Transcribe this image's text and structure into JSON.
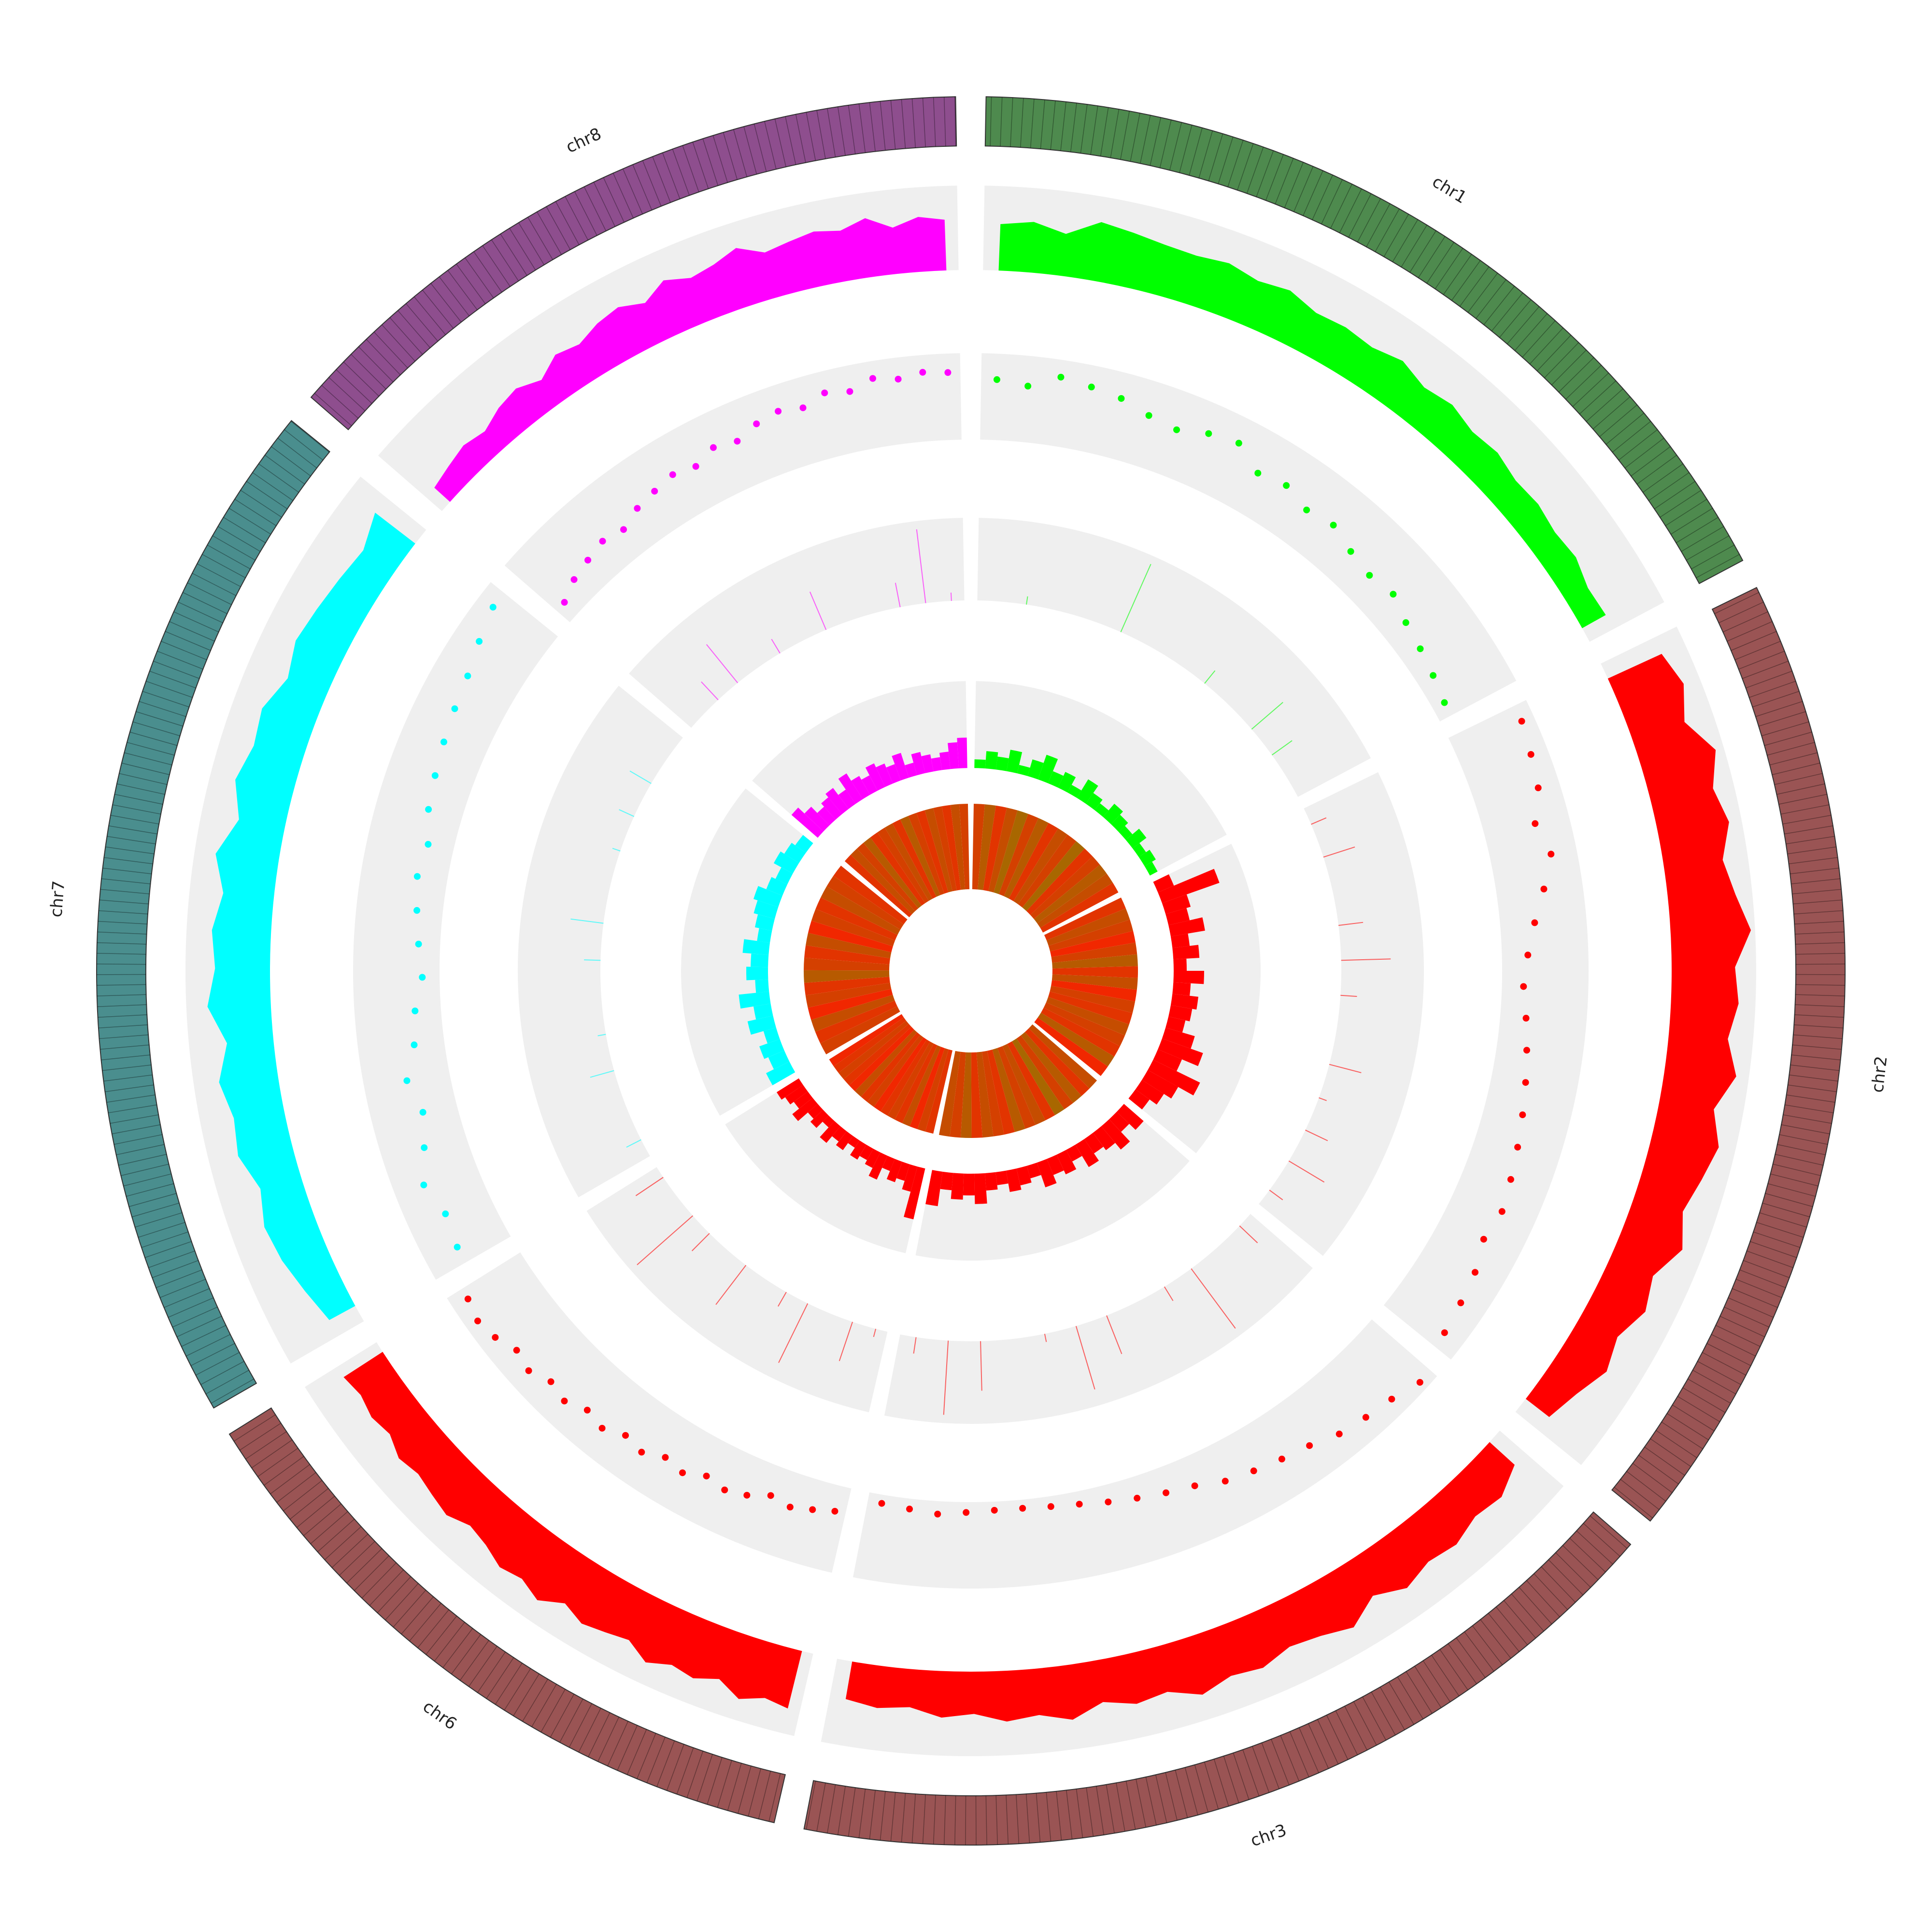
{
  "chart_data": {
    "type": "circos",
    "chromosomes": [
      {
        "name": "chr1",
        "length": 61,
        "color": "#4e8a4e",
        "track_color": "#00ff00"
      },
      {
        "name": "chr2",
        "length": 65,
        "color": "#9a5454",
        "track_color": "#ff0000"
      },
      {
        "name": "chr3",
        "length": 60,
        "color": "#9a5454",
        "track_color": "#ff0000"
      },
      {
        "name": "chr6",
        "length": 45,
        "color": "#9a5454",
        "track_color": "#ff0000"
      },
      {
        "name": "chr7",
        "length": 69,
        "color": "#4a8e8e",
        "track_color": "#00ffff"
      },
      {
        "name": "chr8",
        "length": 48,
        "color": "#8e4e8e",
        "track_color": "#ff00ff"
      }
    ],
    "tracks": [
      {
        "type": "area",
        "ylim": [
          0,
          1
        ],
        "values": [
          [
            0.55,
            0.6,
            0.5,
            0.7,
            0.65,
            0.6,
            0.58,
            0.62,
            0.55,
            0.6,
            0.5,
            0.52,
            0.48,
            0.55,
            0.45,
            0.5,
            0.42,
            0.45,
            0.38,
            0.4,
            0.35,
            0.38,
            0.3,
            0.32
          ],
          [
            0.7,
            0.8,
            0.65,
            0.9,
            0.75,
            0.85,
            0.7,
            0.8,
            0.95,
            0.75,
            0.8,
            0.7,
            0.85,
            0.65,
            0.8,
            0.7,
            0.6,
            0.75,
            0.55,
            0.65,
            0.5,
            0.6,
            0.45,
            0.35
          ],
          [
            0.4,
            0.55,
            0.5,
            0.6,
            0.55,
            0.65,
            0.5,
            0.7,
            0.6,
            0.55,
            0.65,
            0.6,
            0.7,
            0.55,
            0.6,
            0.5,
            0.65,
            0.55,
            0.6,
            0.5,
            0.55,
            0.45,
            0.5,
            0.45
          ],
          [
            0.7,
            0.65,
            0.75,
            0.6,
            0.7,
            0.65,
            0.75,
            0.6,
            0.65,
            0.7,
            0.6,
            0.75,
            0.65,
            0.7,
            0.6,
            0.55,
            0.65,
            0.6,
            0.55,
            0.6,
            0.5,
            0.55,
            0.5,
            0.55
          ],
          [
            0.35,
            0.45,
            0.55,
            0.6,
            0.5,
            0.65,
            0.6,
            0.7,
            0.55,
            0.75,
            0.65,
            0.7,
            0.6,
            0.75,
            0.55,
            0.7,
            0.6,
            0.65,
            0.5,
            0.6,
            0.55,
            0.5,
            0.45,
            0.6
          ],
          [
            0.25,
            0.3,
            0.35,
            0.3,
            0.4,
            0.45,
            0.35,
            0.5,
            0.45,
            0.55,
            0.6,
            0.5,
            0.65,
            0.55,
            0.6,
            0.7,
            0.55,
            0.6,
            0.65,
            0.6,
            0.7,
            0.55,
            0.65,
            0.6
          ]
        ]
      },
      {
        "type": "scatter",
        "ylim": [
          0,
          1
        ],
        "values": [
          [
            0.7,
            0.65,
            0.8,
            0.75,
            0.7,
            0.6,
            0.55,
            0.65,
            0.7,
            0.5,
            0.55,
            0.45,
            0.5,
            0.4,
            0.35,
            0.4,
            0.3,
            0.25,
            0.2,
            0.15
          ],
          [
            0.85,
            0.8,
            0.75,
            0.6,
            0.7,
            0.55,
            0.4,
            0.3,
            0.25,
            0.3,
            0.35,
            0.4,
            0.45,
            0.5,
            0.55,
            0.6,
            0.55,
            0.65,
            0.7,
            0.75
          ],
          [
            0.9,
            0.8,
            0.75,
            0.7,
            0.6,
            0.55,
            0.5,
            0.45,
            0.35,
            0.3,
            0.25,
            0.2,
            0.15,
            0.12,
            0.1,
            0.1,
            0.12,
            0.15,
            0.12,
            0.1
          ],
          [
            0.3,
            0.35,
            0.4,
            0.35,
            0.45,
            0.5,
            0.45,
            0.55,
            0.5,
            0.6,
            0.55,
            0.65,
            0.6,
            0.7,
            0.65,
            0.75,
            0.7,
            0.8,
            0.85,
            0.8
          ],
          [
            0.6,
            0.55,
            0.65,
            0.5,
            0.4,
            0.5,
            0.35,
            0.3,
            0.2,
            0.25,
            0.3,
            0.35,
            0.3,
            0.4,
            0.45,
            0.5,
            0.55,
            0.6,
            0.7,
            0.8
          ],
          [
            0.2,
            0.3,
            0.35,
            0.4,
            0.35,
            0.45,
            0.5,
            0.55,
            0.5,
            0.6,
            0.55,
            0.65,
            0.7,
            0.65,
            0.75,
            0.7,
            0.8,
            0.75,
            0.8,
            0.78
          ]
        ]
      },
      {
        "type": "spikes",
        "ylim": [
          0,
          1
        ],
        "values": [
          [
            0,
            0.1,
            0,
            0,
            0.9,
            0,
            0,
            0.2,
            0,
            0.5,
            0.3,
            0
          ],
          [
            0.2,
            0.4,
            0,
            0.3,
            0.6,
            0.2,
            0,
            0.4,
            0.1,
            0.3,
            0.5,
            0.2
          ],
          [
            0.3,
            0,
            0.9,
            0.2,
            0,
            0.5,
            0.8,
            0.1,
            0,
            0.6,
            0.9,
            0.2
          ],
          [
            0.1,
            0.5,
            0,
            0.8,
            0.2,
            0,
            0.6,
            0,
            0.3,
            0.9,
            0,
            0.4
          ],
          [
            0.2,
            0,
            0.3,
            0.1,
            0,
            0.2,
            0.4,
            0,
            0.1,
            0.2,
            0.3,
            0
          ],
          [
            0,
            0.3,
            0.6,
            0,
            0.2,
            0,
            0.5,
            0,
            0,
            0.3,
            0.9,
            0.1
          ]
        ]
      },
      {
        "type": "histogram",
        "ylim": [
          0,
          1
        ],
        "values": [
          [
            0.1,
            0.2,
            0.15,
            0.25,
            0.1,
            0.2,
            0.3,
            0.15,
            0.2,
            0.1,
            0.25,
            0.15,
            0.1,
            0.2,
            0.15,
            0.1,
            0.2,
            0.1,
            0.15,
            0.1
          ],
          [
            0.2,
            0.7,
            0.3,
            0.25,
            0.4,
            0.2,
            0.3,
            0.15,
            0.35,
            0.2,
            0.3,
            0.25,
            0.2,
            0.35,
            0.5,
            0.3,
            0.6,
            0.4,
            0.3,
            0.2
          ],
          [
            0.3,
            0.2,
            0.35,
            0.25,
            0.2,
            0.3,
            0.15,
            0.25,
            0.2,
            0.3,
            0.15,
            0.2,
            0.25,
            0.15,
            0.2,
            0.35,
            0.25,
            0.3,
            0.2,
            0.4
          ],
          [
            0.6,
            0.3,
            0.2,
            0.25,
            0.15,
            0.3,
            0.2,
            0.15,
            0.2,
            0.1,
            0.2,
            0.15,
            0.25,
            0.1,
            0.2,
            0.15,
            0.3,
            0.2,
            0.25,
            0.3
          ],
          [
            0.3,
            0.2,
            0.25,
            0.15,
            0.3,
            0.2,
            0.35,
            0.15,
            0.25,
            0.2,
            0.3,
            0.15,
            0.2,
            0.25,
            0.3,
            0.2,
            0.15,
            0.25,
            0.2,
            0.15
          ],
          [
            0.4,
            0.3,
            0.2,
            0.25,
            0.3,
            0.2,
            0.35,
            0.25,
            0.2,
            0.3,
            0.25,
            0.2,
            0.3,
            0.15,
            0.25,
            0.2,
            0.15,
            0.2,
            0.3,
            0.35
          ]
        ]
      },
      {
        "type": "heatmap",
        "low_color": "#ff1a00",
        "high_color": "#6e9a00",
        "values": [
          [
            0.3,
            0.5,
            0.2,
            0.4,
            0.6,
            0.3,
            0.5,
            0.2,
            0.4,
            0.3,
            0.6,
            0.2,
            0.3,
            0.5,
            0.4,
            0.2
          ],
          [
            0.2,
            0.4,
            0.3,
            0.1,
            0.3,
            0.5,
            0.2,
            0.4,
            0.1,
            0.3,
            0.2,
            0.4,
            0.3,
            0.2,
            0.5,
            0.1
          ],
          [
            0.4,
            0.2,
            0.5,
            0.3,
            0.6,
            0.2,
            0.4,
            0.3,
            0.5,
            0.2,
            0.3,
            0.4,
            0.2,
            0.5,
            0.3,
            0.4
          ],
          [
            0.2,
            0.3,
            0.1,
            0.4,
            0.2,
            0.3,
            0.2,
            0.1,
            0.3,
            0.2,
            0.4,
            0.1,
            0.2,
            0.3,
            0.2,
            0.1
          ],
          [
            0.3,
            0.2,
            0.4,
            0.1,
            0.3,
            0.2,
            0.5,
            0.3,
            0.2,
            0.4,
            0.1,
            0.3,
            0.2,
            0.4,
            0.3,
            0.2
          ],
          [
            0.2,
            0.4,
            0.3,
            0.5,
            0.2,
            0.3,
            0.4,
            0.2,
            0.5,
            0.3,
            0.2,
            0.4,
            0.3,
            0.2,
            0.4,
            0.3
          ]
        ]
      }
    ]
  }
}
